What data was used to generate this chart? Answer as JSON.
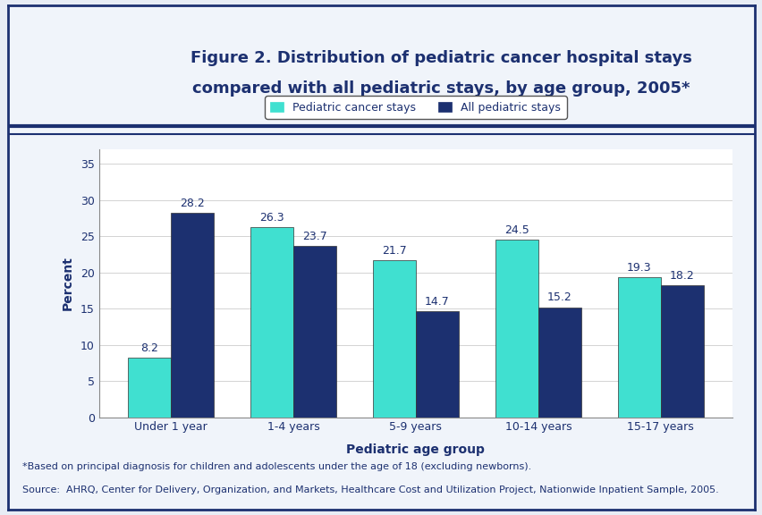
{
  "title_line1": "Figure 2. Distribution of pediatric cancer hospital stays",
  "title_line2": "compared with all pediatric stays, by age group, 2005*",
  "categories": [
    "Under 1 year",
    "1-4 years",
    "5-9 years",
    "10-14 years",
    "15-17 years"
  ],
  "cancer_stays": [
    8.2,
    26.3,
    21.7,
    24.5,
    19.3
  ],
  "all_stays": [
    28.2,
    23.7,
    14.7,
    15.2,
    18.2
  ],
  "cancer_color": "#40E0D0",
  "all_color": "#1C3070",
  "ylabel": "Percent",
  "xlabel": "Pediatric age group",
  "ylim": [
    0,
    37
  ],
  "yticks": [
    0,
    5,
    10,
    15,
    20,
    25,
    30,
    35
  ],
  "legend_label1": "Pediatric cancer stays",
  "legend_label2": "All pediatric stays",
  "footnote1": "*Based on principal diagnosis for children and adolescents under the age of 18 (excluding newborns).",
  "footnote2": "Source:  AHRQ, Center for Delivery, Organization, and Markets, Healthcare Cost and Utilization Project, Nationwide Inpatient Sample, 2005.",
  "outer_bg": "#E8EDF5",
  "inner_bg": "#F0F4FA",
  "chart_bg": "white",
  "title_color": "#1C3070",
  "border_color": "#1C3070",
  "tick_color": "#1C3070",
  "footnote_color": "#1C3070",
  "bar_width": 0.35,
  "label_fontsize": 9,
  "axis_label_fontsize": 10,
  "tick_fontsize": 9,
  "title_fontsize": 13,
  "footnote_fontsize": 8
}
